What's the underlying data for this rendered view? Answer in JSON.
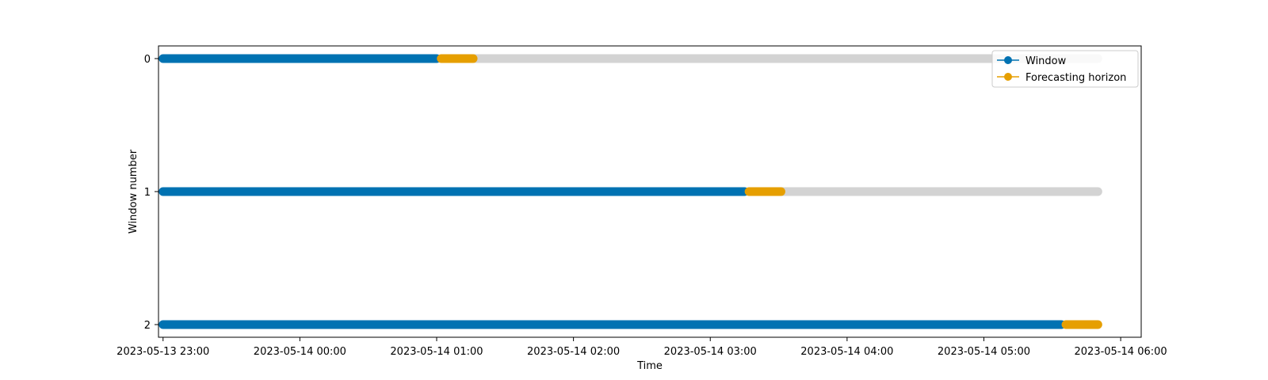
{
  "chart_data": {
    "type": "scatter",
    "xlabel": "Time",
    "ylabel": "Window number",
    "x_range": [
      "2023-05-13 22:58",
      "2023-05-14 06:09"
    ],
    "y_categories": [
      "0",
      "1",
      "2"
    ],
    "x_ticks": [
      "2023-05-13 23:00",
      "2023-05-14 00:00",
      "2023-05-14 01:00",
      "2023-05-14 02:00",
      "2023-05-14 03:00",
      "2023-05-14 04:00",
      "2023-05-14 05:00",
      "2023-05-14 06:00"
    ],
    "legend": {
      "placement": "top-right",
      "entries": [
        {
          "label": "Window",
          "color": "#0072b2"
        },
        {
          "label": "Forecasting horizon",
          "color": "#e69f00"
        }
      ]
    },
    "colors": {
      "window": "#0072b2",
      "horizon": "#e69f00",
      "unused": "#d3d3d3"
    },
    "grid": false,
    "series_start": "2023-05-13 23:00",
    "series_end": "2023-05-14 05:50",
    "windows": [
      {
        "window": 0,
        "window_start": "2023-05-13 23:00",
        "window_end": "2023-05-14 01:00",
        "horizon_start": "2023-05-14 01:02",
        "horizon_end": "2023-05-14 01:16"
      },
      {
        "window": 1,
        "window_start": "2023-05-13 23:00",
        "window_end": "2023-05-14 03:15",
        "horizon_start": "2023-05-14 03:17",
        "horizon_end": "2023-05-14 03:31"
      },
      {
        "window": 2,
        "window_start": "2023-05-13 23:00",
        "window_end": "2023-05-14 05:34",
        "horizon_start": "2023-05-14 05:36",
        "horizon_end": "2023-05-14 05:50"
      }
    ]
  }
}
